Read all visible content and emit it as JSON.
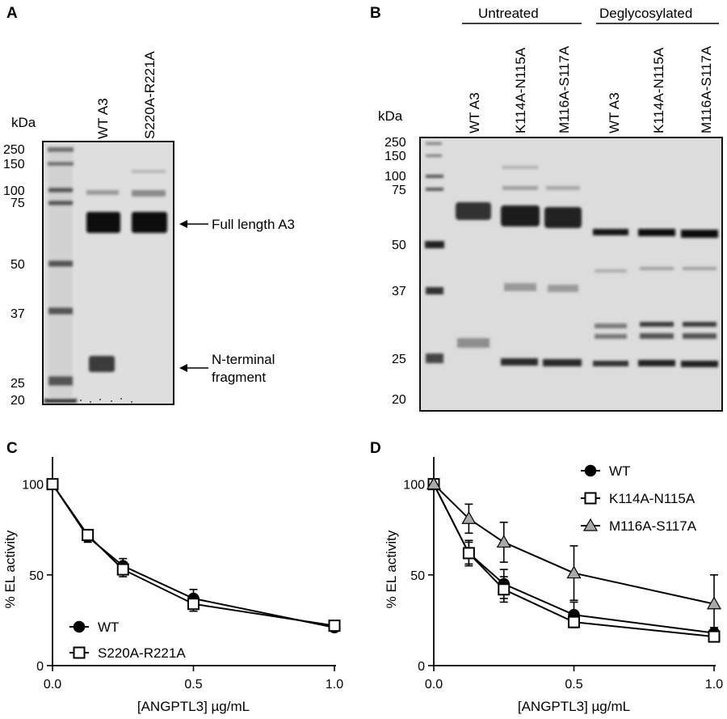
{
  "panels": {
    "A": {
      "letter": "A",
      "unit": "kDa",
      "lanes": [
        "WT A3",
        "S220A-R221A"
      ],
      "markers": [
        "250",
        "150",
        "100",
        "75",
        "50",
        "37",
        "25",
        "20"
      ],
      "annotations": {
        "full_length": "Full length A3",
        "n_terminal_line1": "N-terminal",
        "n_terminal_line2": "fragment"
      }
    },
    "B": {
      "letter": "B",
      "unit": "kDa",
      "groups": [
        "Untreated",
        "Deglycosylated"
      ],
      "lanes": [
        "WT A3",
        "K114A-N115A",
        "M116A-S117A",
        "WT A3",
        "K114A-N115A",
        "M116A-S117A"
      ],
      "markers": [
        "250",
        "150",
        "100",
        "75",
        "50",
        "37",
        "25",
        "20"
      ]
    },
    "C": {
      "letter": "C"
    },
    "D": {
      "letter": "D"
    }
  },
  "colors": {
    "wt": "#000000",
    "k114": "#000000",
    "m116": "#a9a9a9",
    "gel_bg": "#dedede"
  },
  "chart_data": [
    {
      "id": "C",
      "type": "line",
      "xlabel": "[ANGPTL3] µg/mL",
      "ylabel": "% EL activity",
      "xlim": [
        0,
        1.0
      ],
      "ylim": [
        0,
        115
      ],
      "xticks": [
        "0.0",
        "0.5",
        "1.0"
      ],
      "xtick_values": [
        0,
        0.5,
        1.0
      ],
      "yticks": [
        "0",
        "50",
        "100"
      ],
      "ytick_values": [
        0,
        50,
        100
      ],
      "legend_position": "bottom-left",
      "x": [
        0,
        0.125,
        0.25,
        0.5,
        1.0
      ],
      "series": [
        {
          "name": "WT",
          "marker": "circle",
          "values": [
            100,
            71,
            55,
            37,
            21
          ],
          "errors": [
            0,
            3,
            4,
            5,
            2
          ]
        },
        {
          "name": "S220A-R221A",
          "marker": "square-open",
          "values": [
            100,
            72,
            53,
            34,
            22
          ],
          "errors": [
            0,
            3,
            4,
            4,
            2
          ]
        }
      ]
    },
    {
      "id": "D",
      "type": "line",
      "xlabel": "[ANGPTL3] µg/mL",
      "ylabel": "% EL activity",
      "xlim": [
        0,
        1.0
      ],
      "ylim": [
        0,
        115
      ],
      "xticks": [
        "0.0",
        "0.5",
        "1.0"
      ],
      "xtick_values": [
        0,
        0.5,
        1.0
      ],
      "yticks": [
        "0",
        "50",
        "100"
      ],
      "ytick_values": [
        0,
        50,
        100
      ],
      "legend_position": "top-right",
      "x": [
        0,
        0.125,
        0.25,
        0.5,
        1.0
      ],
      "series": [
        {
          "name": "WT",
          "marker": "circle",
          "values": [
            100,
            62,
            45,
            28,
            18
          ],
          "errors": [
            0,
            7,
            8,
            7,
            3
          ]
        },
        {
          "name": "K114A-N115A",
          "marker": "square-open",
          "values": [
            100,
            62,
            42,
            24,
            16
          ],
          "errors": [
            0,
            6,
            7,
            3,
            2
          ]
        },
        {
          "name": "M116A-S117A",
          "marker": "triangle-gray",
          "values": [
            100,
            81,
            68,
            51,
            34
          ],
          "errors": [
            0,
            8,
            11,
            15,
            16
          ]
        }
      ]
    }
  ]
}
